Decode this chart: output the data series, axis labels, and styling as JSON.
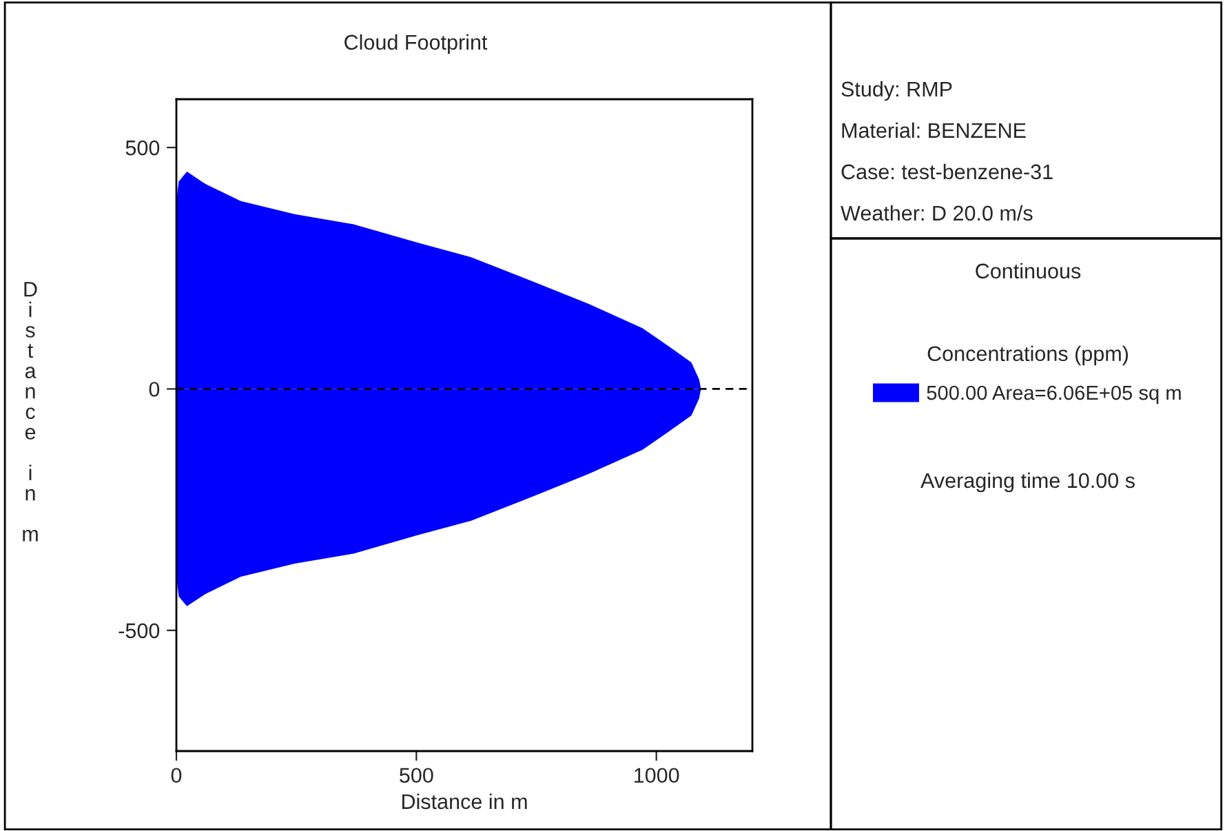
{
  "chart_data": {
    "type": "area",
    "title": "Cloud Footprint",
    "xlabel": "Distance in m",
    "ylabel": "Distance in m",
    "legend_title": "Concentrations (ppm)",
    "annotations": [
      "Study: RMP",
      "Material: BENZENE",
      "Case: test-benzene-31",
      "Weather: D 20.0 m/s",
      "Continuous",
      "Averaging time 10.00 s"
    ],
    "series": [
      {
        "name": "500.00 Area=6.06E+05 sq m",
        "color": "#0000ff",
        "x": [
          0,
          5,
          22,
          60,
          134,
          246,
          369,
          502,
          614,
          757,
          859,
          971,
          1022,
          1073,
          1089,
          1093
        ],
        "values": [
          389,
          430,
          450,
          425,
          389,
          362,
          341,
          303,
          273,
          217,
          176,
          126,
          91,
          55,
          20,
          0
        ]
      },
      {
        "color": "#0000ff",
        "x": [
          0,
          5,
          22,
          60,
          134,
          246,
          369,
          502,
          614,
          757,
          859,
          971,
          1022,
          1073,
          1089,
          1093
        ],
        "values": [
          -389,
          -430,
          -450,
          -425,
          -389,
          -362,
          -341,
          -303,
          -273,
          -217,
          -176,
          -126,
          -91,
          -55,
          -20,
          0
        ]
      }
    ],
    "xlim": [
      0,
      1200
    ],
    "ylim": [
      -750,
      600
    ],
    "xticks": [
      0,
      500,
      1000
    ],
    "yticks": [
      -500,
      0,
      500
    ],
    "ref_lines": [
      {
        "axis": "y",
        "value": 0,
        "color": "#000000",
        "line_style": "dashed"
      }
    ],
    "grid": false,
    "legend": "right"
  }
}
